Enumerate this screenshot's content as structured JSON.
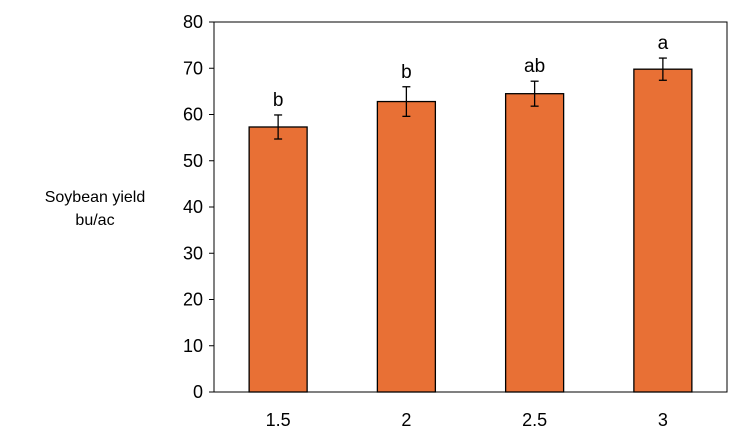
{
  "chart_data": {
    "type": "bar",
    "categories": [
      "1.5",
      "2",
      "2.5",
      "3"
    ],
    "values": [
      57.3,
      62.8,
      64.5,
      69.8
    ],
    "errors": [
      2.6,
      3.2,
      2.7,
      2.4
    ],
    "letters": [
      "b",
      "b",
      "ab",
      "a"
    ],
    "ylabel_lines": [
      "Soybean yield",
      "bu/ac"
    ],
    "ylim": [
      0,
      80
    ],
    "yticks": [
      0,
      10,
      20,
      30,
      40,
      50,
      60,
      70,
      80
    ],
    "grid": false,
    "bar_color": "#E87035",
    "edge_color": "#000000"
  }
}
